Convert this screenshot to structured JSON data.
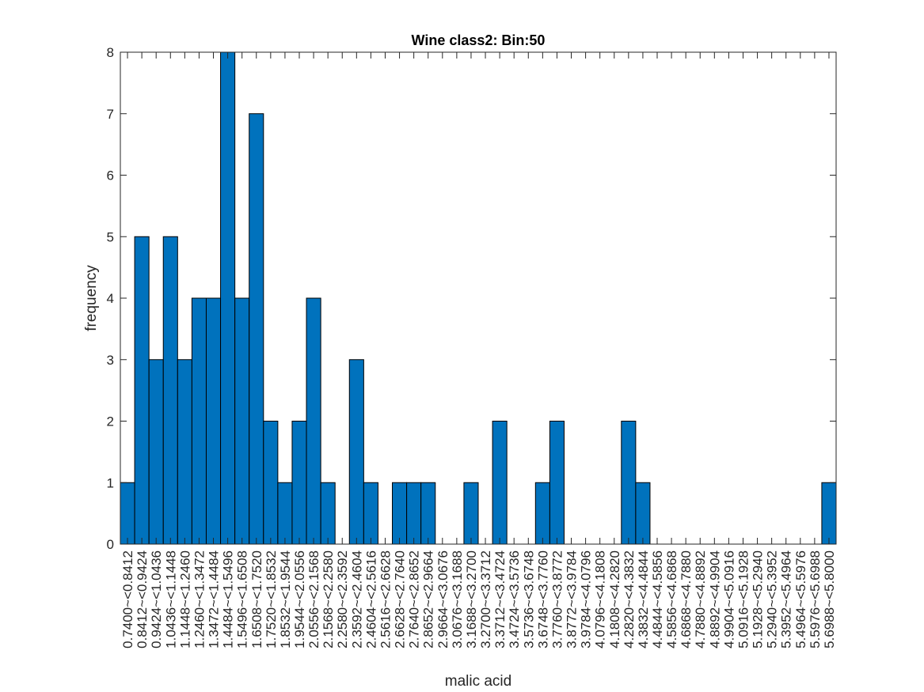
{
  "chart_data": {
    "type": "bar",
    "title": "Wine class2: Bin:50",
    "xlabel": "malic acid",
    "ylabel": "frequency",
    "ylim": [
      0,
      8
    ],
    "yticks": [
      "0",
      "1",
      "2",
      "3",
      "4",
      "5",
      "6",
      "7",
      "8"
    ],
    "grid": false,
    "categories": [
      "0.7400~<0.8412",
      "0.8412~<0.9424",
      "0.9424~<1.0436",
      "1.0436~<1.1448",
      "1.1448~<1.2460",
      "1.2460~<1.3472",
      "1.3472~<1.4484",
      "1.4484~<1.5496",
      "1.5496~<1.6508",
      "1.6508~<1.7520",
      "1.7520~<1.8532",
      "1.8532~<1.9544",
      "1.9544~<2.0556",
      "2.0556~<2.1568",
      "2.1568~<2.2580",
      "2.2580~<2.3592",
      "2.3592~<2.4604",
      "2.4604~<2.5616",
      "2.5616~<2.6628",
      "2.6628~<2.7640",
      "2.7640~<2.8652",
      "2.8652~<2.9664",
      "2.9664~<3.0676",
      "3.0676~<3.1688",
      "3.1688~<3.2700",
      "3.2700~<3.3712",
      "3.3712~<3.4724",
      "3.4724~<3.5736",
      "3.5736~<3.6748",
      "3.6748~<3.7760",
      "3.7760~<3.8772",
      "3.8772~<3.9784",
      "3.9784~<4.0796",
      "4.0796~<4.1808",
      "4.1808~<4.2820",
      "4.2820~<4.3832",
      "4.3832~<4.4844",
      "4.4844~<4.5856",
      "4.5856~<4.6868",
      "4.6868~<4.7880",
      "4.7880~<4.8892",
      "4.8892~<4.9904",
      "4.9904~<5.0916",
      "5.0916~<5.1928",
      "5.1928~<5.2940",
      "5.2940~<5.3952",
      "5.3952~<5.4964",
      "5.4964~<5.5976",
      "5.5976~<5.6988",
      "5.6988~<5.8000"
    ],
    "values": [
      1,
      5,
      3,
      5,
      3,
      4,
      4,
      8,
      4,
      7,
      2,
      1,
      2,
      4,
      1,
      0,
      3,
      1,
      0,
      1,
      1,
      1,
      0,
      0,
      1,
      0,
      2,
      0,
      0,
      1,
      2,
      0,
      0,
      0,
      0,
      2,
      1,
      0,
      0,
      0,
      0,
      0,
      0,
      0,
      0,
      0,
      0,
      0,
      0,
      1
    ],
    "bar_color": "#0072BD",
    "edge_color": "#000000"
  }
}
